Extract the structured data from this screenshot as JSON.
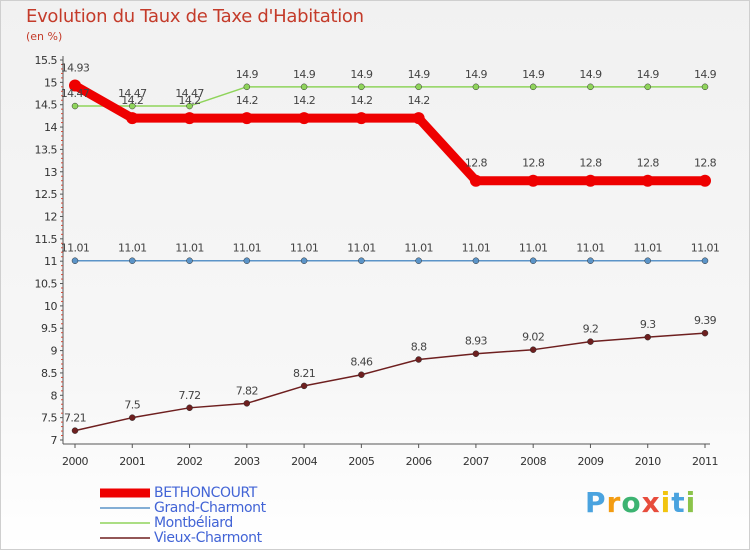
{
  "chart_data": {
    "type": "line",
    "title": "Evolution du Taux de Taxe d'Habitation",
    "subtitle": "(en %)",
    "categories": [
      "2000",
      "2001",
      "2002",
      "2003",
      "2004",
      "2005",
      "2006",
      "2007",
      "2008",
      "2009",
      "2010",
      "2011"
    ],
    "ylim": [
      7,
      15.5
    ],
    "yticks": [
      "7",
      "7.5",
      "8",
      "8.5",
      "9",
      "9.5",
      "10",
      "10.5",
      "11",
      "11.5",
      "12",
      "12.5",
      "13",
      "13.5",
      "14",
      "14.5",
      "15",
      "15.5"
    ],
    "series": [
      {
        "name": "BETHONCOURT",
        "color": "#ee0000",
        "values": [
          14.93,
          14.2,
          14.2,
          14.2,
          14.2,
          14.2,
          14.2,
          12.8,
          12.8,
          12.8,
          12.8,
          12.8
        ],
        "labels": [
          "14.93",
          "14.2",
          "14.2",
          "14.2",
          "14.2",
          "14.2",
          "14.2",
          "12.8",
          "12.8",
          "12.8",
          "12.8",
          "12.8"
        ]
      },
      {
        "name": "Grand-Charmont",
        "color": "#5b94c8",
        "values": [
          11.01,
          11.01,
          11.01,
          11.01,
          11.01,
          11.01,
          11.01,
          11.01,
          11.01,
          11.01,
          11.01,
          11.01
        ],
        "labels": [
          "11.01",
          "11.01",
          "11.01",
          "11.01",
          "11.01",
          "11.01",
          "11.01",
          "11.01",
          "11.01",
          "11.01",
          "11.01",
          "11.01"
        ]
      },
      {
        "name": "Montbéliard",
        "color": "#8fd45b",
        "values": [
          14.47,
          14.47,
          14.47,
          14.9,
          14.9,
          14.9,
          14.9,
          14.9,
          14.9,
          14.9,
          14.9,
          14.9
        ],
        "labels": [
          "14.47",
          "14.47",
          "14.47",
          "14.9",
          "14.9",
          "14.9",
          "14.9",
          "14.9",
          "14.9",
          "14.9",
          "14.9",
          "14.9"
        ]
      },
      {
        "name": "Vieux-Charmont",
        "color": "#6e1f1f",
        "values": [
          7.21,
          7.5,
          7.72,
          7.82,
          8.21,
          8.46,
          8.8,
          8.93,
          9.02,
          9.2,
          9.3,
          9.39
        ],
        "labels": [
          "7.21",
          "7.5",
          "7.72",
          "7.82",
          "8.21",
          "8.46",
          "8.8",
          "8.93",
          "9.02",
          "9.2",
          "9.3",
          "9.39"
        ]
      }
    ],
    "grid": false,
    "legend": "bottom-left"
  },
  "brand": {
    "letters": [
      "P",
      "r",
      "o",
      "x",
      "i",
      "t",
      "i"
    ],
    "colors": [
      "#4aa3df",
      "#f39c12",
      "#3cb371",
      "#e74c3c",
      "#f1c40f",
      "#4aa3df",
      "#8bc34a"
    ]
  }
}
